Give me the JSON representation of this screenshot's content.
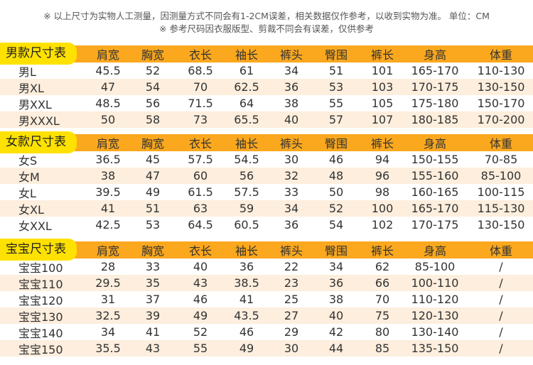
{
  "notes": [
    "※ 以上尺寸为实物人工测量，因测量方式不同会有1-2CM误差，相关数据仅作参考，以收到实物为准。 单位：CM",
    "※ 参考尺码因衣服版型、剪裁不同会有误差，仅供参考"
  ],
  "colors": {
    "header": "#fba81e",
    "tab": "#ffe100",
    "row_alt": "#fdeedd"
  },
  "columns": [
    "肩宽",
    "胸宽",
    "衣长",
    "袖长",
    "裤头",
    "臀围",
    "裤长",
    "身高",
    "体重"
  ],
  "sections": [
    {
      "title": "男款尺寸表",
      "rows": [
        {
          "size": "男L",
          "values": [
            "45.5",
            "52",
            "68.5",
            "61",
            "34",
            "51",
            "101",
            "165-170",
            "110-130"
          ]
        },
        {
          "size": "男XL",
          "values": [
            "47",
            "54",
            "70",
            "62.5",
            "36",
            "53",
            "103",
            "170-175",
            "130-150"
          ]
        },
        {
          "size": "男XXL",
          "values": [
            "48.5",
            "56",
            "71.5",
            "64",
            "38",
            "55",
            "105",
            "175-180",
            "150-170"
          ]
        },
        {
          "size": "男XXXL",
          "values": [
            "50",
            "58",
            "73",
            "65.5",
            "40",
            "57",
            "107",
            "180-185",
            "170-200"
          ]
        }
      ]
    },
    {
      "title": "女款尺寸表",
      "rows": [
        {
          "size": "女S",
          "values": [
            "36.5",
            "45",
            "57.5",
            "54.5",
            "30",
            "46",
            "94",
            "150-155",
            "70-85"
          ]
        },
        {
          "size": "女M",
          "values": [
            "38",
            "47",
            "60",
            "56",
            "32",
            "48",
            "96",
            "155-160",
            "85-100"
          ]
        },
        {
          "size": "女L",
          "values": [
            "39.5",
            "49",
            "61.5",
            "57.5",
            "33",
            "50",
            "98",
            "160-165",
            "100-115"
          ]
        },
        {
          "size": "女XL",
          "values": [
            "41",
            "51",
            "63",
            "59",
            "34",
            "52",
            "100",
            "165-170",
            "115-130"
          ]
        },
        {
          "size": "女XXL",
          "values": [
            "42.5",
            "53",
            "64.5",
            "60.5",
            "36",
            "54",
            "102",
            "170-175",
            "130-150"
          ]
        }
      ]
    },
    {
      "title": "宝宝尺寸表",
      "rows": [
        {
          "size": "宝宝100",
          "values": [
            "28",
            "33",
            "40",
            "36",
            "22",
            "34",
            "62",
            "85-100",
            "/"
          ]
        },
        {
          "size": "宝宝110",
          "values": [
            "29.5",
            "35",
            "43",
            "38.5",
            "23",
            "36",
            "66",
            "100-110",
            "/"
          ]
        },
        {
          "size": "宝宝120",
          "values": [
            "31",
            "37",
            "46",
            "41",
            "25",
            "38",
            "70",
            "110-120",
            "/"
          ]
        },
        {
          "size": "宝宝130",
          "values": [
            "32.5",
            "39",
            "49",
            "43.5",
            "27",
            "40",
            "75",
            "120-130",
            "/"
          ]
        },
        {
          "size": "宝宝140",
          "values": [
            "34",
            "41",
            "52",
            "46",
            "29",
            "42",
            "80",
            "130-140",
            "/"
          ]
        },
        {
          "size": "宝宝150",
          "values": [
            "35.5",
            "43",
            "55",
            "49",
            "30",
            "44",
            "85",
            "135-150",
            "/"
          ]
        }
      ]
    }
  ]
}
